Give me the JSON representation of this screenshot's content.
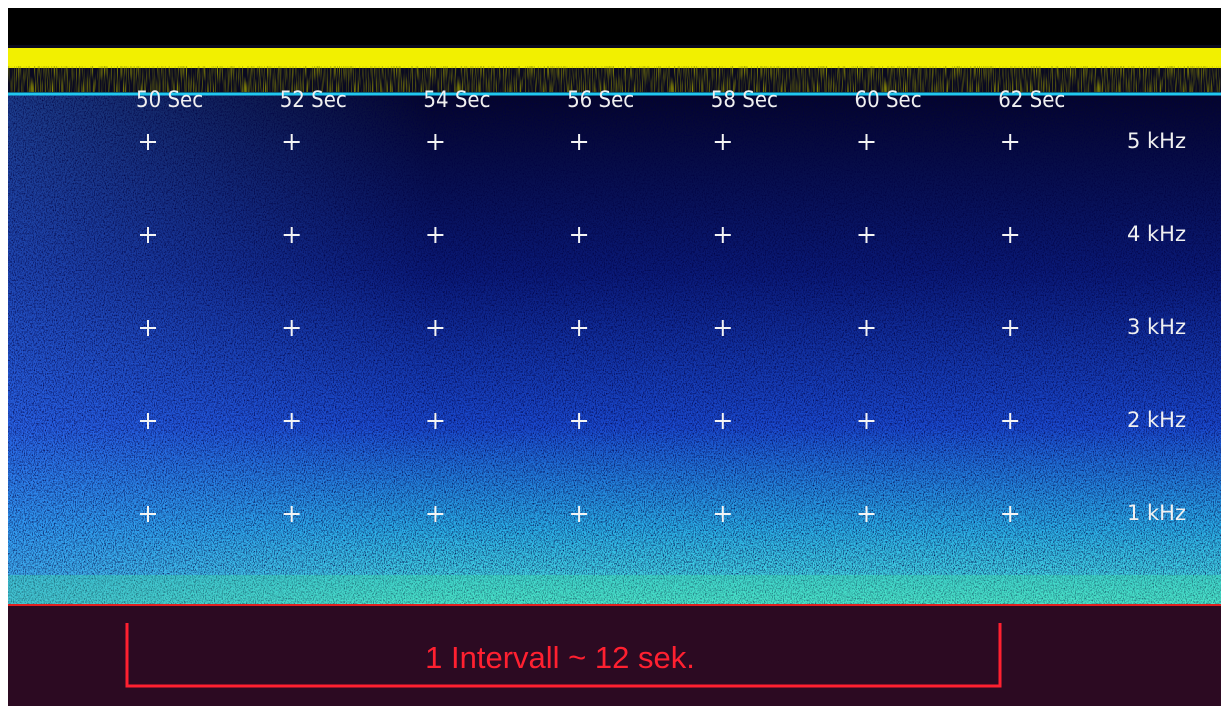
{
  "time_labels": [
    "50 Sec",
    "52 Sec",
    "54 Sec",
    "56 Sec",
    "58 Sec",
    "60 Sec",
    "62 Sec"
  ],
  "frequency_labels": [
    "5 kHz",
    "4 kHz",
    "3 kHz",
    "2 kHz",
    "1 kHz"
  ],
  "annotation": "1 Intervall ~ 12 sek."
}
